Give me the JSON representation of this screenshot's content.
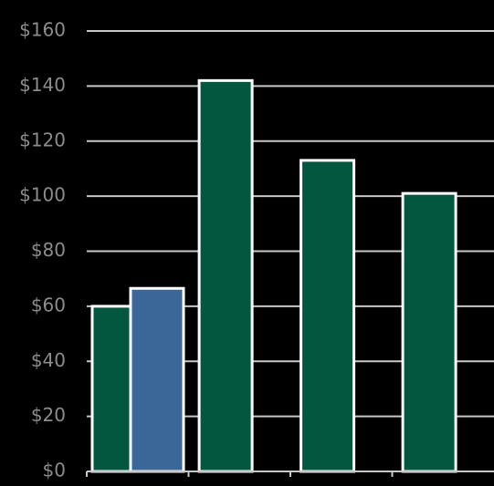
{
  "chart_data": {
    "type": "bar",
    "categories": [
      null,
      null,
      null,
      null
    ],
    "series": [
      {
        "color": "#03573f",
        "values": [
          60,
          142,
          113,
          101
        ]
      },
      {
        "color": "#3a6698",
        "values": [
          66.5,
          null,
          null,
          null
        ]
      }
    ],
    "ylim": [
      0,
      160
    ],
    "yticks": [
      {
        "value": 0,
        "label": "$0"
      },
      {
        "value": 20,
        "label": "$20"
      },
      {
        "value": 40,
        "label": "$40"
      },
      {
        "value": 60,
        "label": "$60"
      },
      {
        "value": 80,
        "label": "$80"
      },
      {
        "value": 100,
        "label": "$100"
      },
      {
        "value": 120,
        "label": "$120"
      },
      {
        "value": 140,
        "label": "$140"
      },
      {
        "value": 160,
        "label": "$160"
      }
    ],
    "grid": true
  }
}
